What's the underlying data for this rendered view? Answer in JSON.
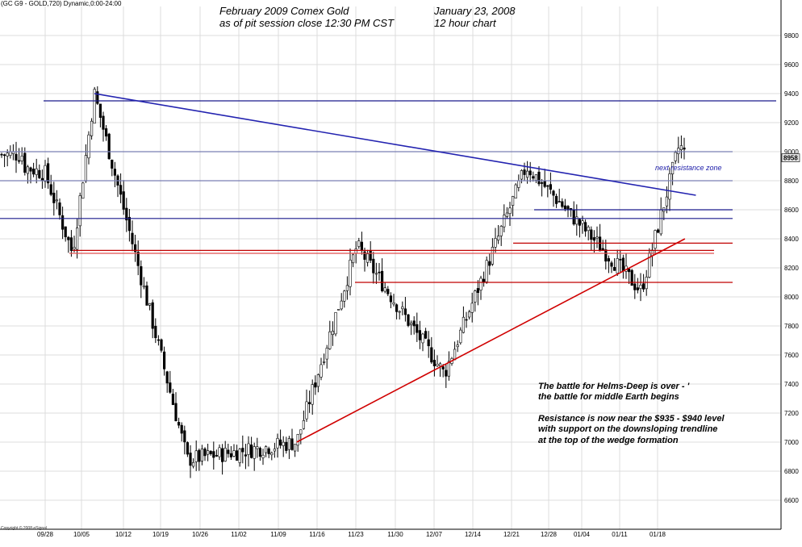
{
  "header": {
    "instrument": "(GC G9 - GOLD,720) Dynamic,0:00-24:00",
    "copyright": "Copyright © 2008 eSignal"
  },
  "annotations": {
    "title_line1": "February 2009 Comex Gold",
    "title_line2": "as of pit session close 12:30 PM CST",
    "date_line1": "January 23, 2008",
    "date_line2": "12 hour chart",
    "commentary_line1": "The battle for Helms-Deep is over - '",
    "commentary_line2": "the battle for middle Earth begins",
    "commentary_line3": "Resistance is now near the $935 - $940 level",
    "commentary_line4": "with support on the downsloping trendline",
    "commentary_line5": "at the top of the wedge formation",
    "zone_label": "next resistance zone"
  },
  "chart_data": {
    "type": "candlestick",
    "title": "",
    "ylim": [
      6400,
      10000
    ],
    "y_ticks": [
      6600,
      6800,
      7000,
      7200,
      7400,
      7600,
      7800,
      8000,
      8200,
      8400,
      8600,
      8800,
      9000,
      9200,
      9400,
      9600,
      9800
    ],
    "y_tick_labels": [
      "6600",
      "6800",
      "7000",
      "7200",
      "7400",
      "7600",
      "7800",
      "8000",
      "8200",
      "8400",
      "8600",
      "8800",
      "9000",
      "9200",
      "9400",
      "9600",
      "9800"
    ],
    "x_tick_labels": [
      "09/28",
      "10/05",
      "10/12",
      "10/19",
      "10/26",
      "11/02",
      "11/09",
      "11/16",
      "11/23",
      "11/30",
      "12/07",
      "12/14",
      "12/21",
      "12/28",
      "01/04",
      "01/11",
      "01/18"
    ],
    "last_price": "8958",
    "key_anchors": [
      {
        "date": "10/07",
        "high": 9400
      },
      {
        "date": "10/24",
        "low": 6880
      },
      {
        "date": "11/13",
        "low": 7000
      },
      {
        "date": "11/24",
        "high": 8350
      },
      {
        "date": "12/10",
        "low": 7470
      },
      {
        "date": "12/25",
        "high": 8900
      },
      {
        "date": "01/15",
        "low": 8040
      },
      {
        "date": "01/22",
        "high": 9050
      }
    ],
    "horizontal_lines": [
      {
        "value": 9350,
        "color": "#1a1a8c"
      },
      {
        "value": 9000,
        "color": "#7a7fb5"
      },
      {
        "value": 8800,
        "color": "#7a7fb5"
      },
      {
        "value": 8600,
        "color": "#1a1a8c"
      },
      {
        "value": 8540,
        "color": "#1a1a8c"
      },
      {
        "value": 8370,
        "color": "#c00000"
      },
      {
        "value": 8320,
        "color": "#c00000"
      },
      {
        "value": 8300,
        "color": "#e05050"
      },
      {
        "value": 8100,
        "color": "#c00000"
      }
    ],
    "trendlines": [
      {
        "name": "downsloping",
        "from": {
          "date": "10/07",
          "value": 9400
        },
        "to": {
          "date": "01/25",
          "value": 8700
        },
        "color": "#2323b0"
      },
      {
        "name": "upsloping",
        "from": {
          "date": "11/13",
          "value": 7000
        },
        "to": {
          "date": "01/23",
          "value": 8400
        },
        "color": "#d00000"
      }
    ],
    "colors": {
      "up": "#ffffff",
      "down": "#000000",
      "grid": "#dcdcdc"
    }
  }
}
